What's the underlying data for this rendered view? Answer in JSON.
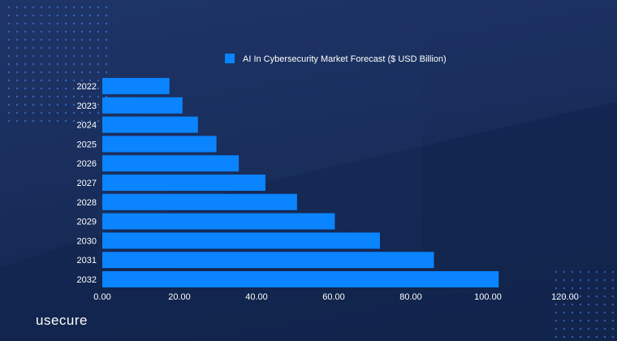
{
  "brand": {
    "name": "usecure"
  },
  "colors": {
    "bar": "#0a84ff",
    "text": "#ffffff"
  },
  "chart_data": {
    "type": "bar",
    "orientation": "horizontal",
    "title": "",
    "legend": [
      "AI In Cybersecurity Market Forecast ($ USD Billion)"
    ],
    "legend_position": "top",
    "categories": [
      "2022",
      "2023",
      "2024",
      "2025",
      "2026",
      "2027",
      "2028",
      "2029",
      "2030",
      "2031",
      "2032"
    ],
    "series": [
      {
        "name": "AI In Cybersecurity Market Forecast ($ USD Billion)",
        "values": [
          17.4,
          20.8,
          24.8,
          29.6,
          35.4,
          42.3,
          50.5,
          60.3,
          72.0,
          86.0,
          102.8
        ]
      }
    ],
    "xlim": [
      0,
      120
    ],
    "xticks": [
      "0.00",
      "20.00",
      "40.00",
      "60.00",
      "80.00",
      "100.00",
      "120.00"
    ],
    "xlabel": "",
    "ylabel": "",
    "grid": false
  }
}
